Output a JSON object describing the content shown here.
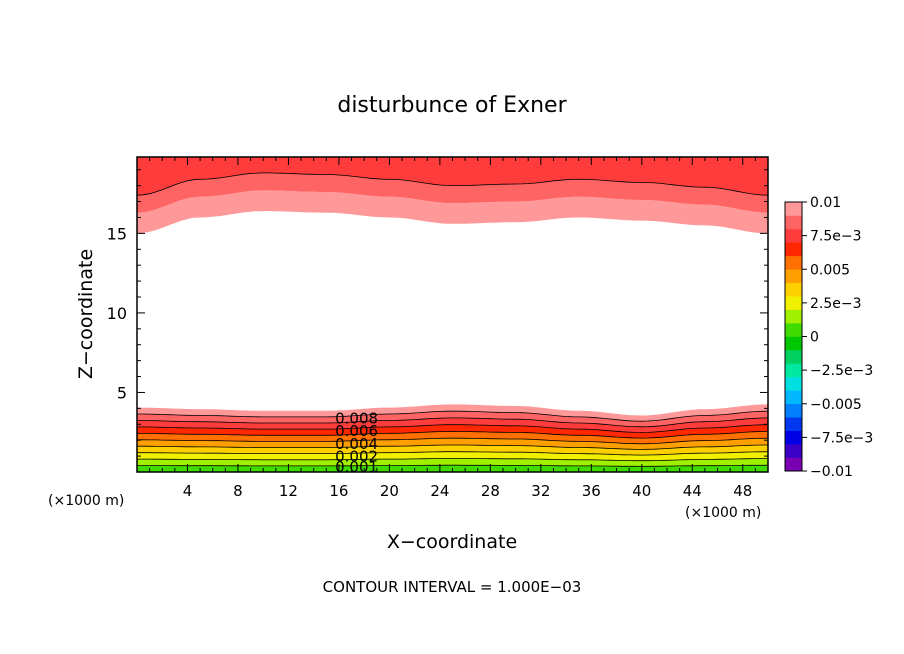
{
  "chart_data": {
    "type": "contour",
    "title": "disturbunce of Exner",
    "xlabel": "X−coordinate",
    "ylabel": "Z−coordinate",
    "x_unit_left": "(×1000 m)",
    "x_unit_right": "(×1000 m)",
    "footer": "CONTOUR INTERVAL = 1.000E−03",
    "xlim": [
      0,
      50
    ],
    "ylim": [
      0,
      19.8
    ],
    "x_ticks": [
      4,
      8,
      12,
      16,
      20,
      24,
      28,
      32,
      36,
      40,
      44,
      48
    ],
    "x_tick_labels": [
      "4",
      "8",
      "12",
      "16",
      "20",
      "24",
      "28",
      "32",
      "36",
      "40",
      "44",
      "48"
    ],
    "y_ticks": [
      5,
      10,
      15
    ],
    "y_tick_labels": [
      "5",
      "10",
      "15"
    ],
    "grid": false,
    "contour_interval": 0.001,
    "inline_labels": [
      "0.008",
      "0.006",
      "0.004",
      "0.002",
      "0.001"
    ],
    "colorbar": {
      "min": -0.01,
      "max": 0.01,
      "tick_labels": [
        "0.01",
        "7.5e−3",
        "0.005",
        "2.5e−3",
        "0",
        "−2.5e−3",
        "−0.005",
        "−7.5e−3",
        "−0.01"
      ],
      "colors": [
        "#7a00b4",
        "#3a00c8",
        "#0000e6",
        "#0038f0",
        "#0080ff",
        "#00b8ff",
        "#00e0e0",
        "#00e8a0",
        "#00d060",
        "#00c800",
        "#40dc00",
        "#a0f000",
        "#f0f000",
        "#ffd000",
        "#ffa000",
        "#ff7000",
        "#ff2800",
        "#ff3c3c",
        "#ff6464",
        "#ff9898"
      ]
    },
    "fields": {
      "surface_level_x": [
        0,
        5,
        10,
        15,
        20,
        25,
        30,
        35,
        40,
        45,
        50
      ],
      "surface_level_z_at_0_002": [
        3.5,
        3.4,
        3.3,
        3.3,
        3.5,
        3.7,
        3.6,
        3.3,
        3.0,
        3.4,
        3.7
      ],
      "top_white_edge_z": [
        15.0,
        16.0,
        16.4,
        16.3,
        16.0,
        15.6,
        15.7,
        16.0,
        15.8,
        15.5,
        15.0
      ]
    }
  }
}
